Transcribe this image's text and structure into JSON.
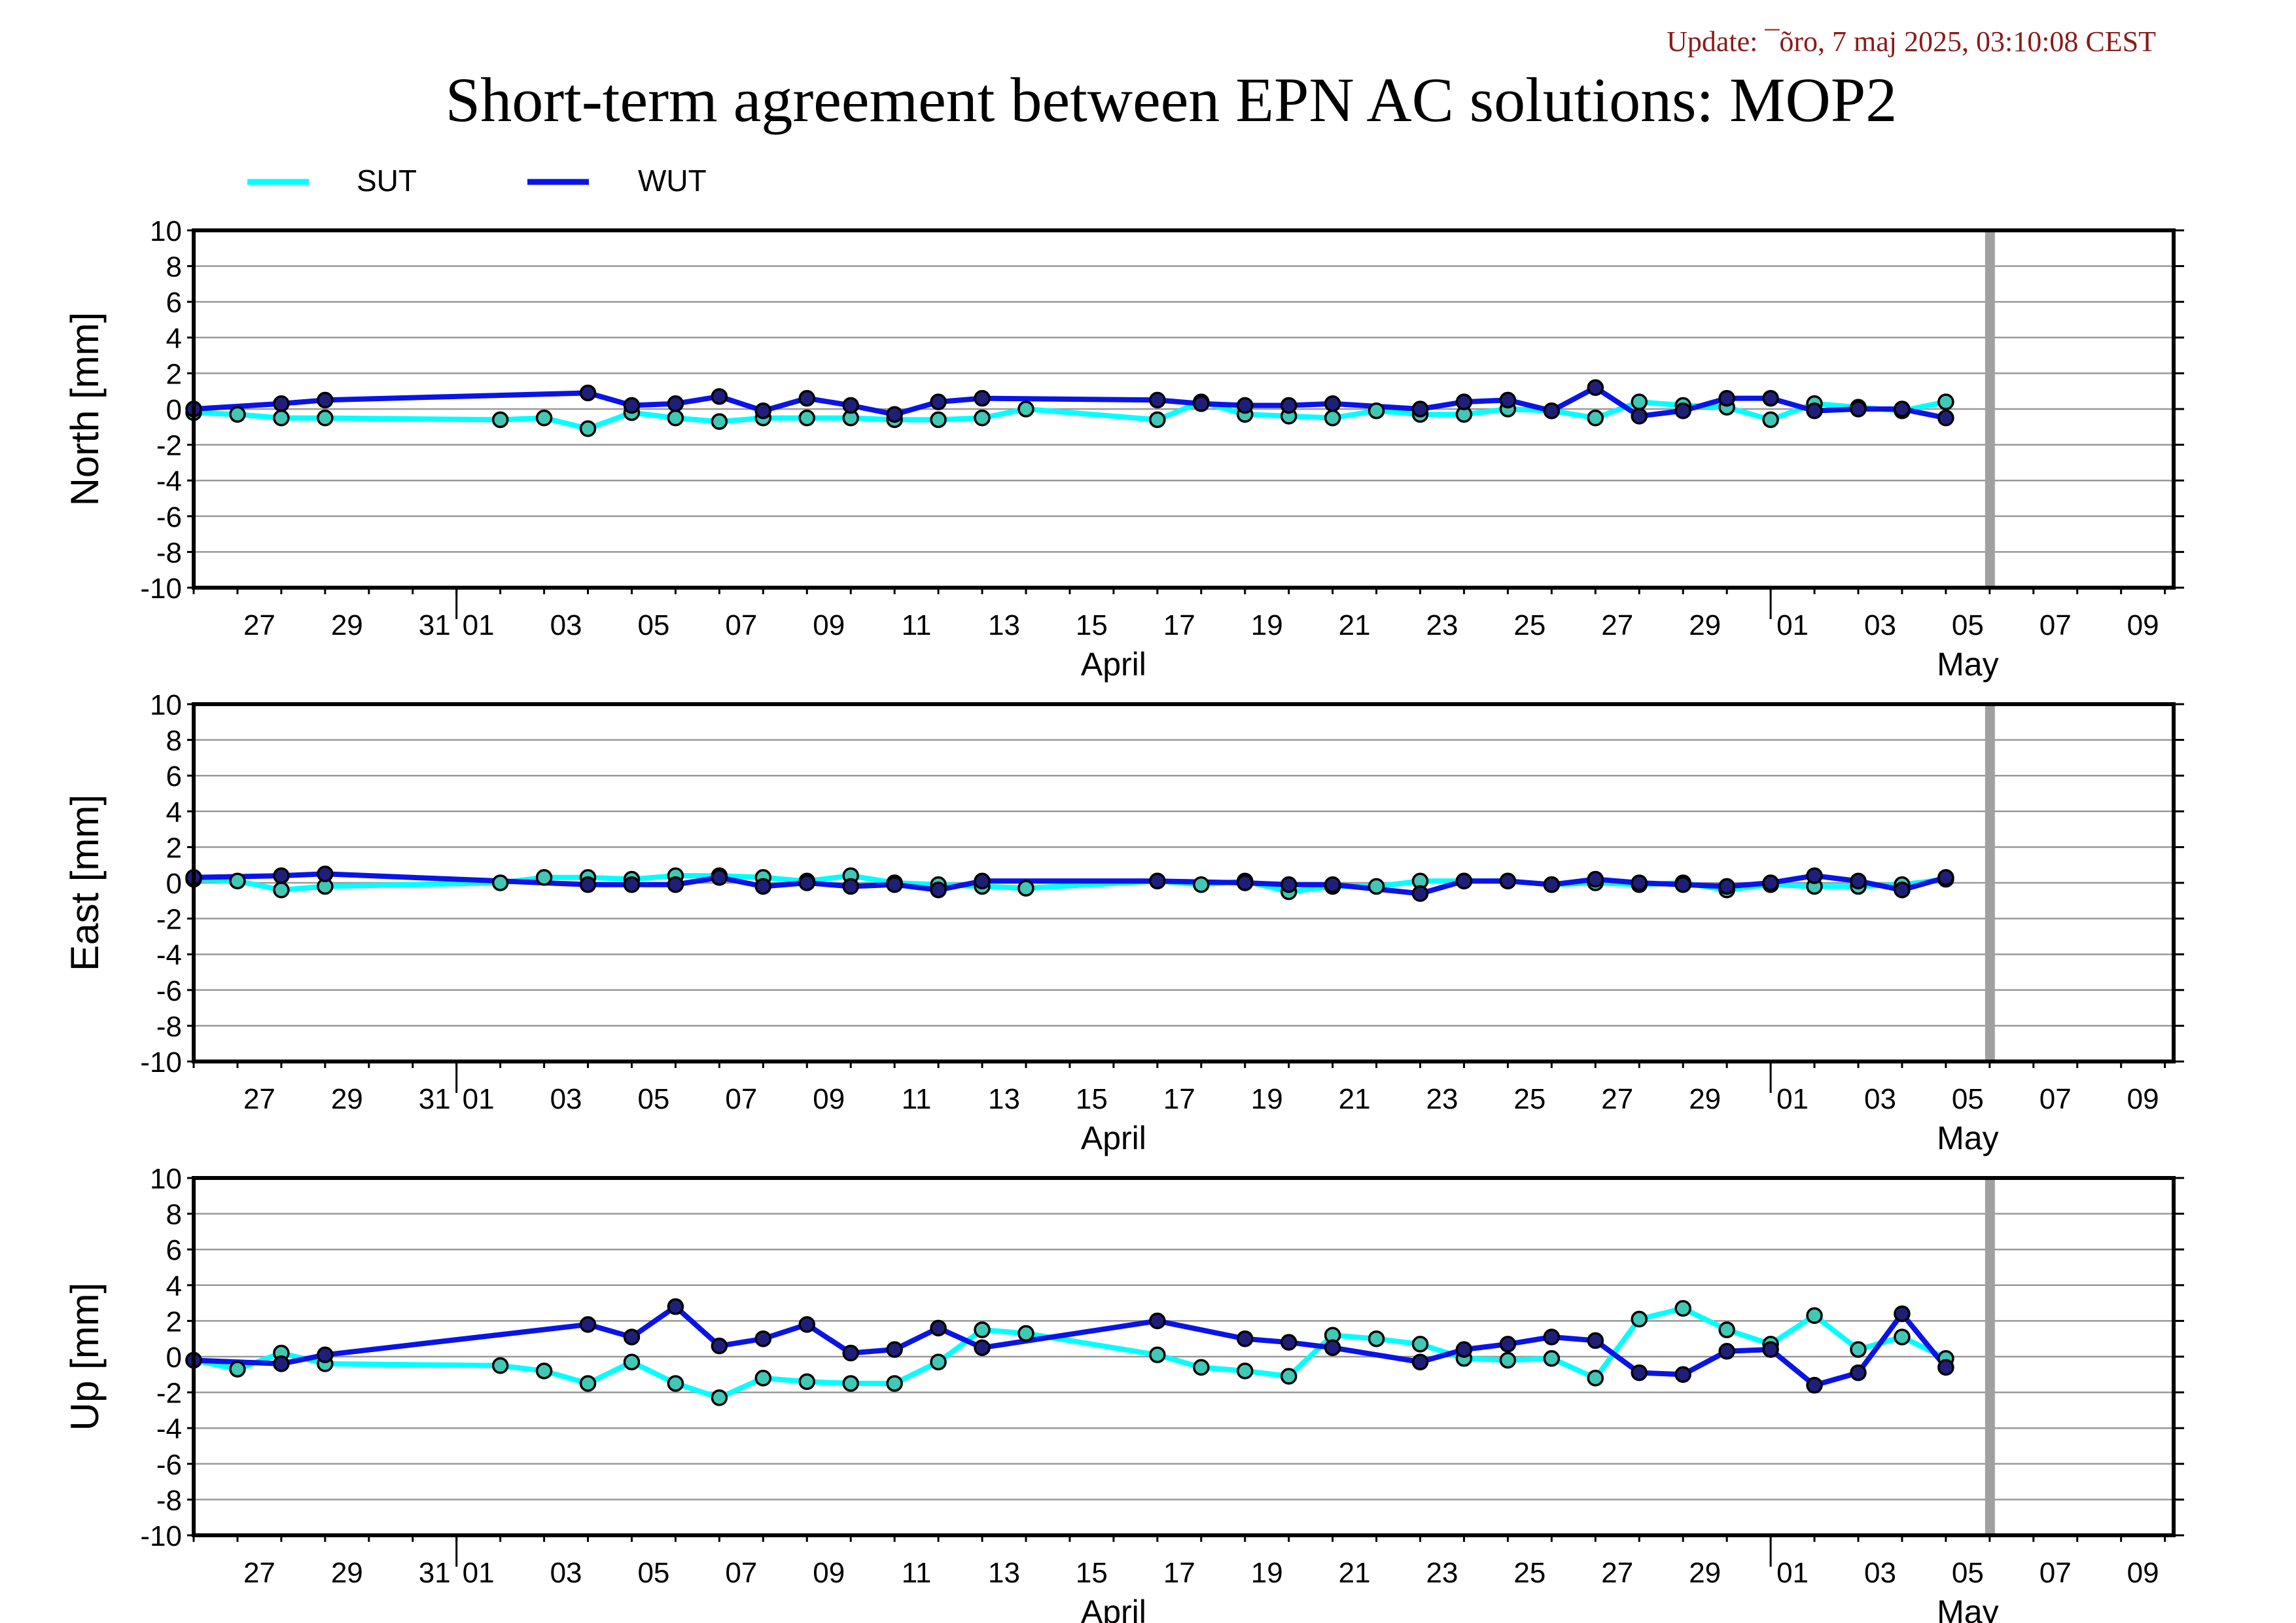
{
  "update_text": "Update: ¯õro, 7 maj 2025, 03:10:08 CEST",
  "title": "Short-term agreement between EPN AC solutions: MOP2",
  "colors": {
    "update": "#8b1a1a",
    "sut": "#00ffff",
    "wut": "#0a14e6",
    "marker_fill_sut": "#40c8b4",
    "marker_fill_wut": "#1f1f7a",
    "grid": "#999999",
    "today_bar": "#a0a0a0"
  },
  "chart_data": [
    {
      "type": "line",
      "ylabel": "North [mm]",
      "ylim": [
        -10,
        10
      ],
      "yticks": [
        10,
        8,
        6,
        4,
        2,
        0,
        -2,
        -4,
        -6,
        -8,
        -10
      ],
      "xlim": [
        0,
        45.2
      ],
      "xticks": [
        {
          "x": 1.5,
          "label": "27"
        },
        {
          "x": 3.5,
          "label": "29"
        },
        {
          "x": 5.5,
          "label": "31"
        },
        {
          "x": 6.5,
          "label": "01"
        },
        {
          "x": 8.5,
          "label": "03"
        },
        {
          "x": 10.5,
          "label": "05"
        },
        {
          "x": 12.5,
          "label": "07"
        },
        {
          "x": 14.5,
          "label": "09"
        },
        {
          "x": 16.5,
          "label": "11"
        },
        {
          "x": 18.5,
          "label": "13"
        },
        {
          "x": 20.5,
          "label": "15"
        },
        {
          "x": 22.5,
          "label": "17"
        },
        {
          "x": 24.5,
          "label": "19"
        },
        {
          "x": 26.5,
          "label": "21"
        },
        {
          "x": 28.5,
          "label": "23"
        },
        {
          "x": 30.5,
          "label": "25"
        },
        {
          "x": 32.5,
          "label": "27"
        },
        {
          "x": 34.5,
          "label": "29"
        },
        {
          "x": 36.5,
          "label": "01"
        },
        {
          "x": 38.5,
          "label": "03"
        },
        {
          "x": 40.5,
          "label": "05"
        },
        {
          "x": 42.5,
          "label": "07"
        },
        {
          "x": 44.5,
          "label": "09"
        }
      ],
      "month_labels": [
        {
          "x": 21,
          "label": "April"
        },
        {
          "x": 40.5,
          "label": "May"
        }
      ],
      "month_boundaries": [
        6,
        36
      ],
      "today_x": 41.0,
      "series": [
        {
          "name": "SUT",
          "color_key": "sut",
          "x": [
            0,
            1,
            2,
            3,
            7,
            8,
            9,
            10,
            11,
            12,
            13,
            14,
            15,
            16,
            17,
            18,
            19,
            22,
            23,
            24,
            25,
            26,
            27,
            28,
            29,
            30,
            31,
            32,
            33,
            34,
            35,
            36,
            37,
            38,
            39,
            40
          ],
          "y": [
            -0.2,
            -0.3,
            -0.5,
            -0.5,
            -0.6,
            -0.5,
            -1.1,
            -0.2,
            -0.5,
            -0.7,
            -0.5,
            -0.5,
            -0.5,
            -0.6,
            -0.6,
            -0.5,
            0.0,
            -0.6,
            0.4,
            -0.3,
            -0.4,
            -0.5,
            -0.1,
            -0.3,
            -0.3,
            0.0,
            -0.1,
            -0.5,
            0.4,
            0.2,
            0.1,
            -0.6,
            0.3,
            0.1,
            -0.1,
            0.4
          ]
        },
        {
          "name": "WUT",
          "color_key": "wut",
          "x": [
            0,
            2,
            3,
            9,
            10,
            11,
            12,
            13,
            14,
            15,
            16,
            17,
            18,
            22,
            23,
            24,
            25,
            26,
            28,
            29,
            30,
            31,
            32,
            33,
            34,
            35,
            36,
            37,
            38,
            39,
            40
          ],
          "y": [
            0.0,
            0.3,
            0.5,
            0.9,
            0.2,
            0.3,
            0.7,
            -0.1,
            0.6,
            0.2,
            -0.3,
            0.4,
            0.6,
            0.5,
            0.3,
            0.2,
            0.2,
            0.3,
            0.0,
            0.4,
            0.5,
            -0.1,
            1.2,
            -0.4,
            -0.1,
            0.6,
            0.6,
            -0.1,
            0.0,
            0.0,
            -0.5
          ]
        }
      ]
    },
    {
      "type": "line",
      "ylabel": "East [mm]",
      "ylim": [
        -10,
        10
      ],
      "yticks": [
        10,
        8,
        6,
        4,
        2,
        0,
        -2,
        -4,
        -6,
        -8,
        -10
      ],
      "xlim": [
        0,
        45.2
      ],
      "xticks": [
        {
          "x": 1.5,
          "label": "27"
        },
        {
          "x": 3.5,
          "label": "29"
        },
        {
          "x": 5.5,
          "label": "31"
        },
        {
          "x": 6.5,
          "label": "01"
        },
        {
          "x": 8.5,
          "label": "03"
        },
        {
          "x": 10.5,
          "label": "05"
        },
        {
          "x": 12.5,
          "label": "07"
        },
        {
          "x": 14.5,
          "label": "09"
        },
        {
          "x": 16.5,
          "label": "11"
        },
        {
          "x": 18.5,
          "label": "13"
        },
        {
          "x": 20.5,
          "label": "15"
        },
        {
          "x": 22.5,
          "label": "17"
        },
        {
          "x": 24.5,
          "label": "19"
        },
        {
          "x": 26.5,
          "label": "21"
        },
        {
          "x": 28.5,
          "label": "23"
        },
        {
          "x": 30.5,
          "label": "25"
        },
        {
          "x": 32.5,
          "label": "27"
        },
        {
          "x": 34.5,
          "label": "29"
        },
        {
          "x": 36.5,
          "label": "01"
        },
        {
          "x": 38.5,
          "label": "03"
        },
        {
          "x": 40.5,
          "label": "05"
        },
        {
          "x": 42.5,
          "label": "07"
        },
        {
          "x": 44.5,
          "label": "09"
        }
      ],
      "month_labels": [
        {
          "x": 21,
          "label": "April"
        },
        {
          "x": 40.5,
          "label": "May"
        }
      ],
      "month_boundaries": [
        6,
        36
      ],
      "today_x": 41.0,
      "series": [
        {
          "name": "SUT",
          "color_key": "sut",
          "x": [
            0,
            1,
            2,
            3,
            7,
            8,
            9,
            10,
            11,
            12,
            13,
            14,
            15,
            16,
            17,
            18,
            19,
            22,
            23,
            24,
            25,
            26,
            27,
            28,
            29,
            30,
            31,
            32,
            33,
            34,
            35,
            36,
            37,
            38,
            39,
            40
          ],
          "y": [
            0.2,
            0.1,
            -0.4,
            -0.2,
            0.0,
            0.3,
            0.3,
            0.2,
            0.4,
            0.4,
            0.3,
            0.1,
            0.4,
            0.0,
            -0.1,
            -0.2,
            -0.3,
            0.1,
            -0.1,
            0.1,
            -0.5,
            -0.2,
            -0.2,
            0.1,
            0.1,
            0.1,
            -0.1,
            0.0,
            -0.1,
            0.0,
            -0.4,
            -0.1,
            -0.2,
            -0.2,
            -0.1,
            0.2
          ]
        },
        {
          "name": "WUT",
          "color_key": "wut",
          "x": [
            0,
            2,
            3,
            9,
            10,
            11,
            12,
            13,
            14,
            15,
            16,
            17,
            18,
            22,
            24,
            25,
            26,
            28,
            29,
            30,
            31,
            32,
            33,
            34,
            35,
            36,
            37,
            38,
            39,
            40
          ],
          "y": [
            0.3,
            0.4,
            0.5,
            -0.1,
            -0.1,
            -0.1,
            0.3,
            -0.2,
            0.0,
            -0.2,
            -0.1,
            -0.4,
            0.1,
            0.1,
            0.0,
            -0.1,
            -0.1,
            -0.6,
            0.1,
            0.1,
            -0.1,
            0.2,
            0.0,
            -0.1,
            -0.2,
            0.0,
            0.4,
            0.1,
            -0.4,
            0.3
          ]
        }
      ]
    },
    {
      "type": "line",
      "ylabel": "Up [mm]",
      "ylim": [
        -10,
        10
      ],
      "yticks": [
        10,
        8,
        6,
        4,
        2,
        0,
        -2,
        -4,
        -6,
        -8,
        -10
      ],
      "xlim": [
        0,
        45.2
      ],
      "xticks": [
        {
          "x": 1.5,
          "label": "27"
        },
        {
          "x": 3.5,
          "label": "29"
        },
        {
          "x": 5.5,
          "label": "31"
        },
        {
          "x": 6.5,
          "label": "01"
        },
        {
          "x": 8.5,
          "label": "03"
        },
        {
          "x": 10.5,
          "label": "05"
        },
        {
          "x": 12.5,
          "label": "07"
        },
        {
          "x": 14.5,
          "label": "09"
        },
        {
          "x": 16.5,
          "label": "11"
        },
        {
          "x": 18.5,
          "label": "13"
        },
        {
          "x": 20.5,
          "label": "15"
        },
        {
          "x": 22.5,
          "label": "17"
        },
        {
          "x": 24.5,
          "label": "19"
        },
        {
          "x": 26.5,
          "label": "21"
        },
        {
          "x": 28.5,
          "label": "23"
        },
        {
          "x": 30.5,
          "label": "25"
        },
        {
          "x": 32.5,
          "label": "27"
        },
        {
          "x": 34.5,
          "label": "29"
        },
        {
          "x": 36.5,
          "label": "01"
        },
        {
          "x": 38.5,
          "label": "03"
        },
        {
          "x": 40.5,
          "label": "05"
        },
        {
          "x": 42.5,
          "label": "07"
        },
        {
          "x": 44.5,
          "label": "09"
        }
      ],
      "month_labels": [
        {
          "x": 21,
          "label": "April"
        },
        {
          "x": 40.5,
          "label": "May"
        }
      ],
      "month_boundaries": [
        6,
        36
      ],
      "today_x": 41.0,
      "series": [
        {
          "name": "SUT",
          "color_key": "sut",
          "x": [
            0,
            1,
            2,
            3,
            7,
            8,
            9,
            10,
            11,
            12,
            13,
            14,
            15,
            16,
            17,
            18,
            19,
            22,
            23,
            24,
            25,
            26,
            27,
            28,
            29,
            30,
            31,
            32,
            33,
            34,
            35,
            36,
            37,
            38,
            39,
            40
          ],
          "y": [
            -0.2,
            -0.7,
            0.2,
            -0.4,
            -0.5,
            -0.8,
            -1.5,
            -0.3,
            -1.5,
            -2.3,
            -1.2,
            -1.4,
            -1.5,
            -1.5,
            -0.3,
            1.5,
            1.3,
            0.1,
            -0.6,
            -0.8,
            -1.1,
            1.2,
            1.0,
            0.7,
            -0.1,
            -0.2,
            -0.1,
            -1.2,
            2.1,
            2.7,
            1.5,
            0.7,
            2.3,
            0.4,
            1.1,
            -0.1
          ]
        },
        {
          "name": "WUT",
          "color_key": "wut",
          "x": [
            0,
            2,
            3,
            9,
            10,
            11,
            12,
            13,
            14,
            15,
            16,
            17,
            18,
            22,
            24,
            25,
            26,
            28,
            29,
            30,
            31,
            32,
            33,
            34,
            35,
            36,
            37,
            38,
            39,
            40
          ],
          "y": [
            -0.2,
            -0.4,
            0.1,
            1.8,
            1.1,
            2.8,
            0.6,
            1.0,
            1.8,
            0.2,
            0.4,
            1.6,
            0.5,
            2.0,
            1.0,
            0.8,
            0.5,
            -0.3,
            0.4,
            0.7,
            1.1,
            0.9,
            -0.9,
            -1.0,
            0.3,
            0.4,
            -1.6,
            -0.9,
            2.4,
            -0.6
          ]
        }
      ]
    }
  ]
}
